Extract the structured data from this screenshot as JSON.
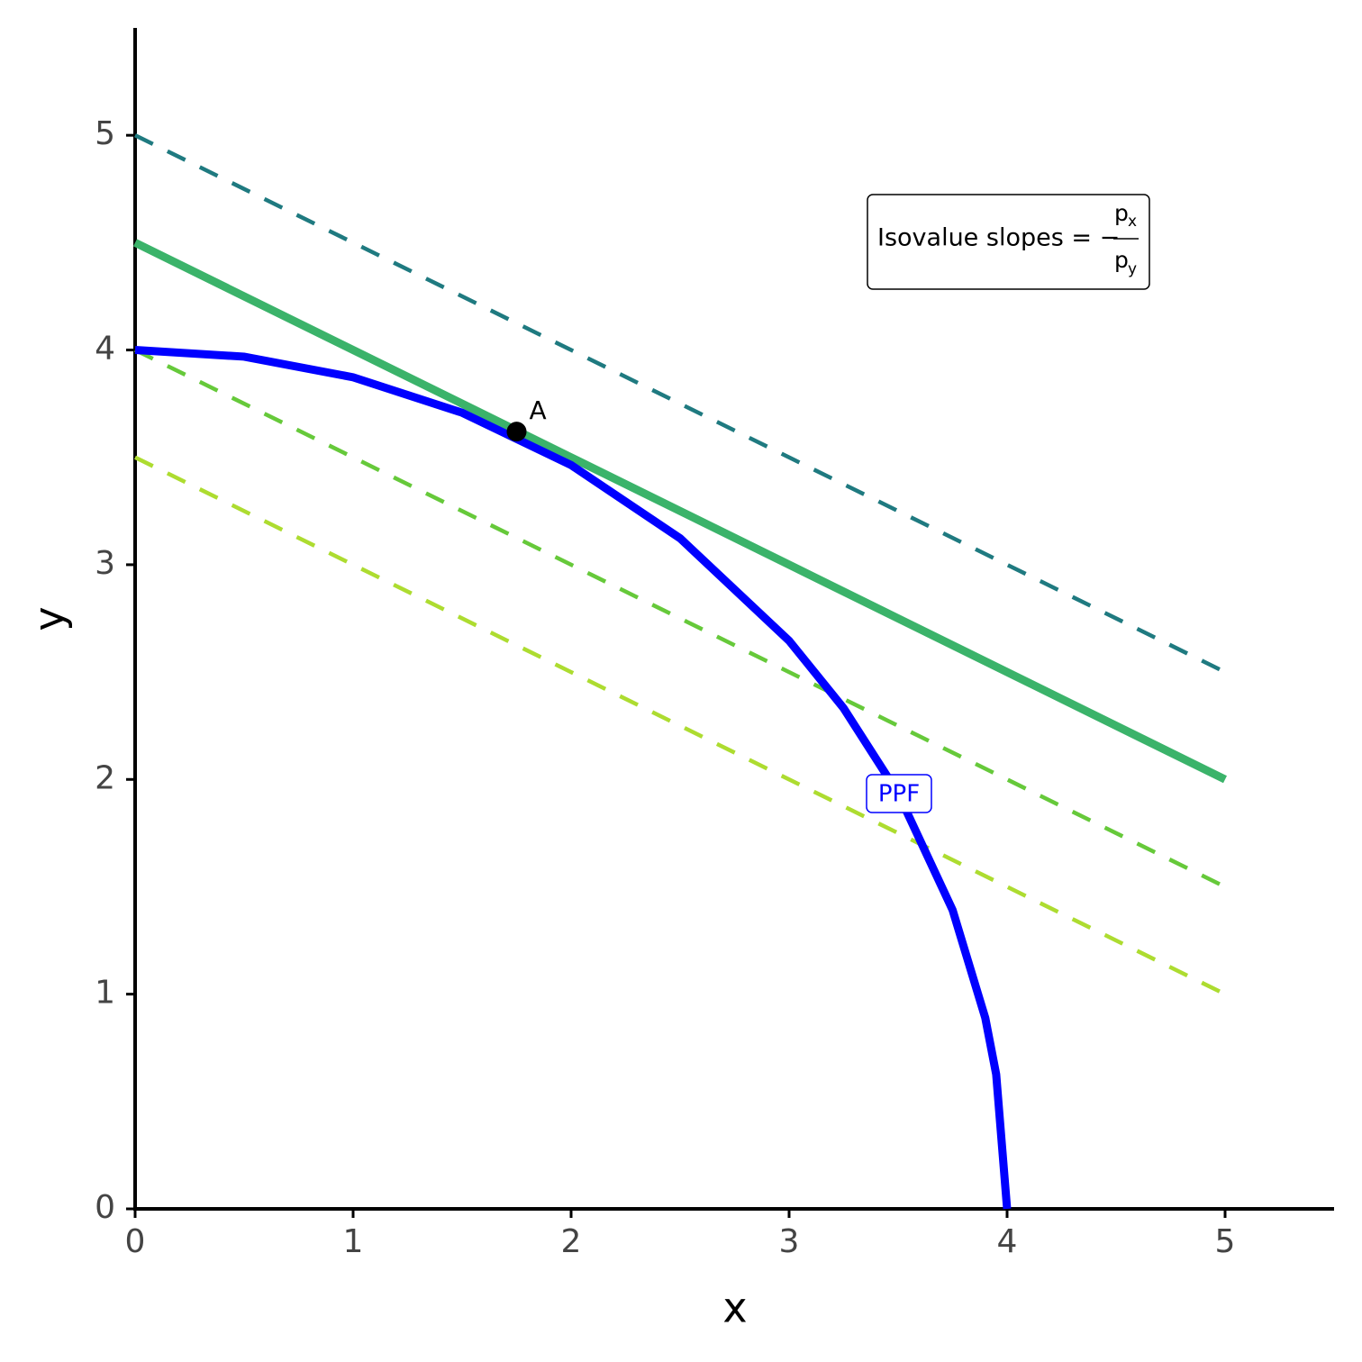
{
  "chart_data": {
    "type": "line",
    "x_label": "x",
    "y_label": "y",
    "xlim": [
      0,
      5.5
    ],
    "ylim": [
      0,
      5.5
    ],
    "xticks": [
      0,
      1,
      2,
      3,
      4,
      5
    ],
    "yticks": [
      0,
      1,
      2,
      3,
      4,
      5
    ],
    "series": [
      {
        "color": "#1f7a80",
        "linestyle": "dashed",
        "x": [
          0,
          5
        ],
        "values": [
          5,
          2.5
        ]
      },
      {
        "color": "#3bb36a",
        "linestyle": "solid",
        "x": [
          0,
          5
        ],
        "values": [
          4.5,
          2
        ]
      },
      {
        "color": "#66c93a",
        "linestyle": "dashed",
        "x": [
          0,
          5
        ],
        "values": [
          4,
          1.5
        ]
      },
      {
        "color": "#addc30",
        "linestyle": "dashed",
        "x": [
          0,
          5
        ],
        "values": [
          3.5,
          1
        ]
      },
      {
        "name": "PPF",
        "color": "#0000ff",
        "linestyle": "solid",
        "x": [
          0,
          0.5,
          1,
          1.5,
          2,
          2.5,
          3,
          3.25,
          3.5,
          3.75,
          3.9,
          3.95,
          4
        ],
        "values": [
          4,
          3.969,
          3.873,
          3.708,
          3.464,
          3.123,
          2.646,
          2.332,
          1.936,
          1.392,
          0.889,
          0.626,
          0
        ]
      }
    ],
    "points": [
      {
        "x": 1.75,
        "y": 3.62,
        "label": "A",
        "color": "#000000"
      }
    ],
    "annotation": {
      "text": "Isovalue slopes = −",
      "numerator": "p",
      "numerator_sub": "x",
      "denominator": "p",
      "denominator_sub": "y"
    }
  }
}
